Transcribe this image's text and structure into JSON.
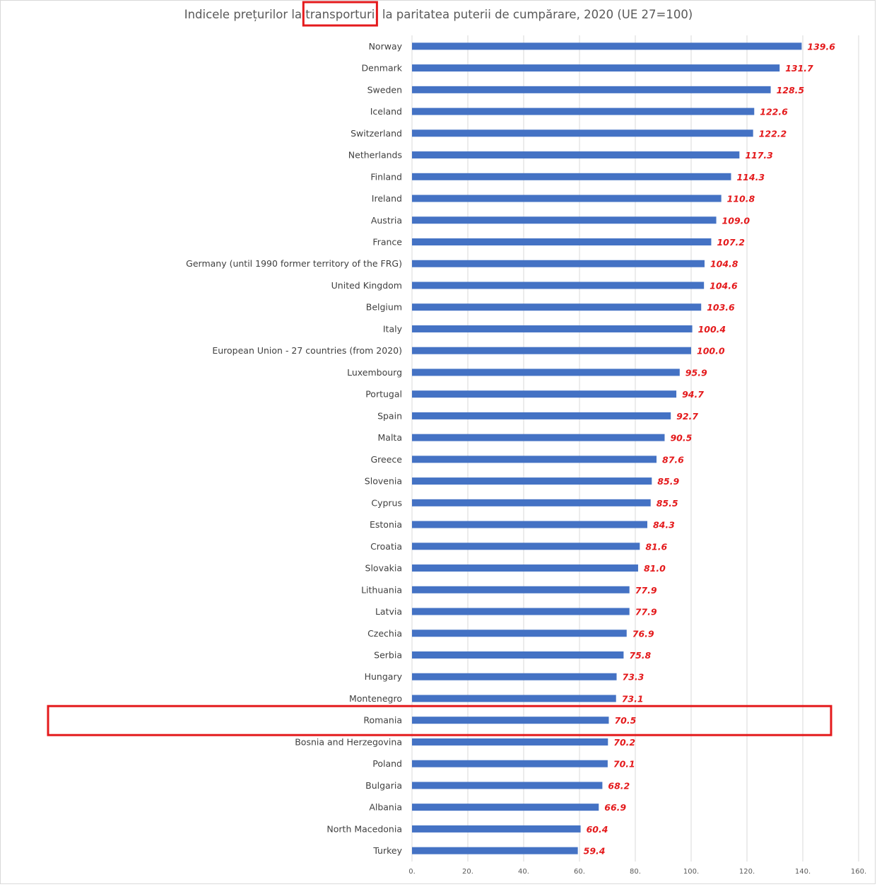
{
  "chart_data": {
    "type": "bar",
    "orientation": "horizontal",
    "title": "Indicele prețurilor la transporturi, la paritatea puterii de cumpărare, 2020 (UE 27=100)",
    "categories": [
      "Norway",
      "Denmark",
      "Sweden",
      "Iceland",
      "Switzerland",
      "Netherlands",
      "Finland",
      "Ireland",
      "Austria",
      "France",
      "Germany (until 1990 former territory of the FRG)",
      "United Kingdom",
      "Belgium",
      "Italy",
      "European Union - 27 countries (from 2020)",
      "Luxembourg",
      "Portugal",
      "Spain",
      "Malta",
      "Greece",
      "Slovenia",
      "Cyprus",
      "Estonia",
      "Croatia",
      "Slovakia",
      "Lithuania",
      "Latvia",
      "Czechia",
      "Serbia",
      "Hungary",
      "Montenegro",
      "Romania",
      "Bosnia and Herzegovina",
      "Poland",
      "Bulgaria",
      "Albania",
      "North Macedonia",
      "Turkey"
    ],
    "values": [
      139.6,
      131.7,
      128.5,
      122.6,
      122.2,
      117.3,
      114.3,
      110.8,
      109.0,
      107.2,
      104.8,
      104.6,
      103.6,
      100.4,
      100.0,
      95.9,
      94.7,
      92.7,
      90.5,
      87.6,
      85.9,
      85.5,
      84.3,
      81.6,
      81.0,
      77.9,
      77.9,
      76.9,
      75.8,
      73.3,
      73.1,
      70.5,
      70.2,
      70.1,
      68.2,
      66.9,
      60.4,
      59.4
    ],
    "value_labels": [
      "139.6",
      "131.7",
      "128.5",
      "122.6",
      "122.2",
      "117.3",
      "114.3",
      "110.8",
      "109.0",
      "107.2",
      "104.8",
      "104.6",
      "103.6",
      "100.4",
      "100.0",
      "95.9",
      "94.7",
      "92.7",
      "90.5",
      "87.6",
      "85.9",
      "85.5",
      "84.3",
      "81.6",
      "81.0",
      "77.9",
      "77.9",
      "76.9",
      "75.8",
      "73.3",
      "73.1",
      "70.5",
      "70.2",
      "70.1",
      "68.2",
      "66.9",
      "60.4",
      "59.4"
    ],
    "xlim": [
      0,
      160
    ],
    "x_ticks": [
      0,
      20,
      40,
      60,
      80,
      100,
      120,
      140,
      160
    ],
    "x_tick_labels": [
      "0.",
      "20.",
      "40.",
      "60.",
      "80.",
      "100.",
      "120.",
      "140.",
      "160."
    ],
    "grid": "vertical",
    "highlighted_category": "Romania",
    "highlighted_title_word": "transporturi",
    "colors": {
      "bar": "#4472c4",
      "value_label": "#e41a1c",
      "highlight_box": "#e41a1c",
      "grid": "#d9d9d9"
    }
  }
}
